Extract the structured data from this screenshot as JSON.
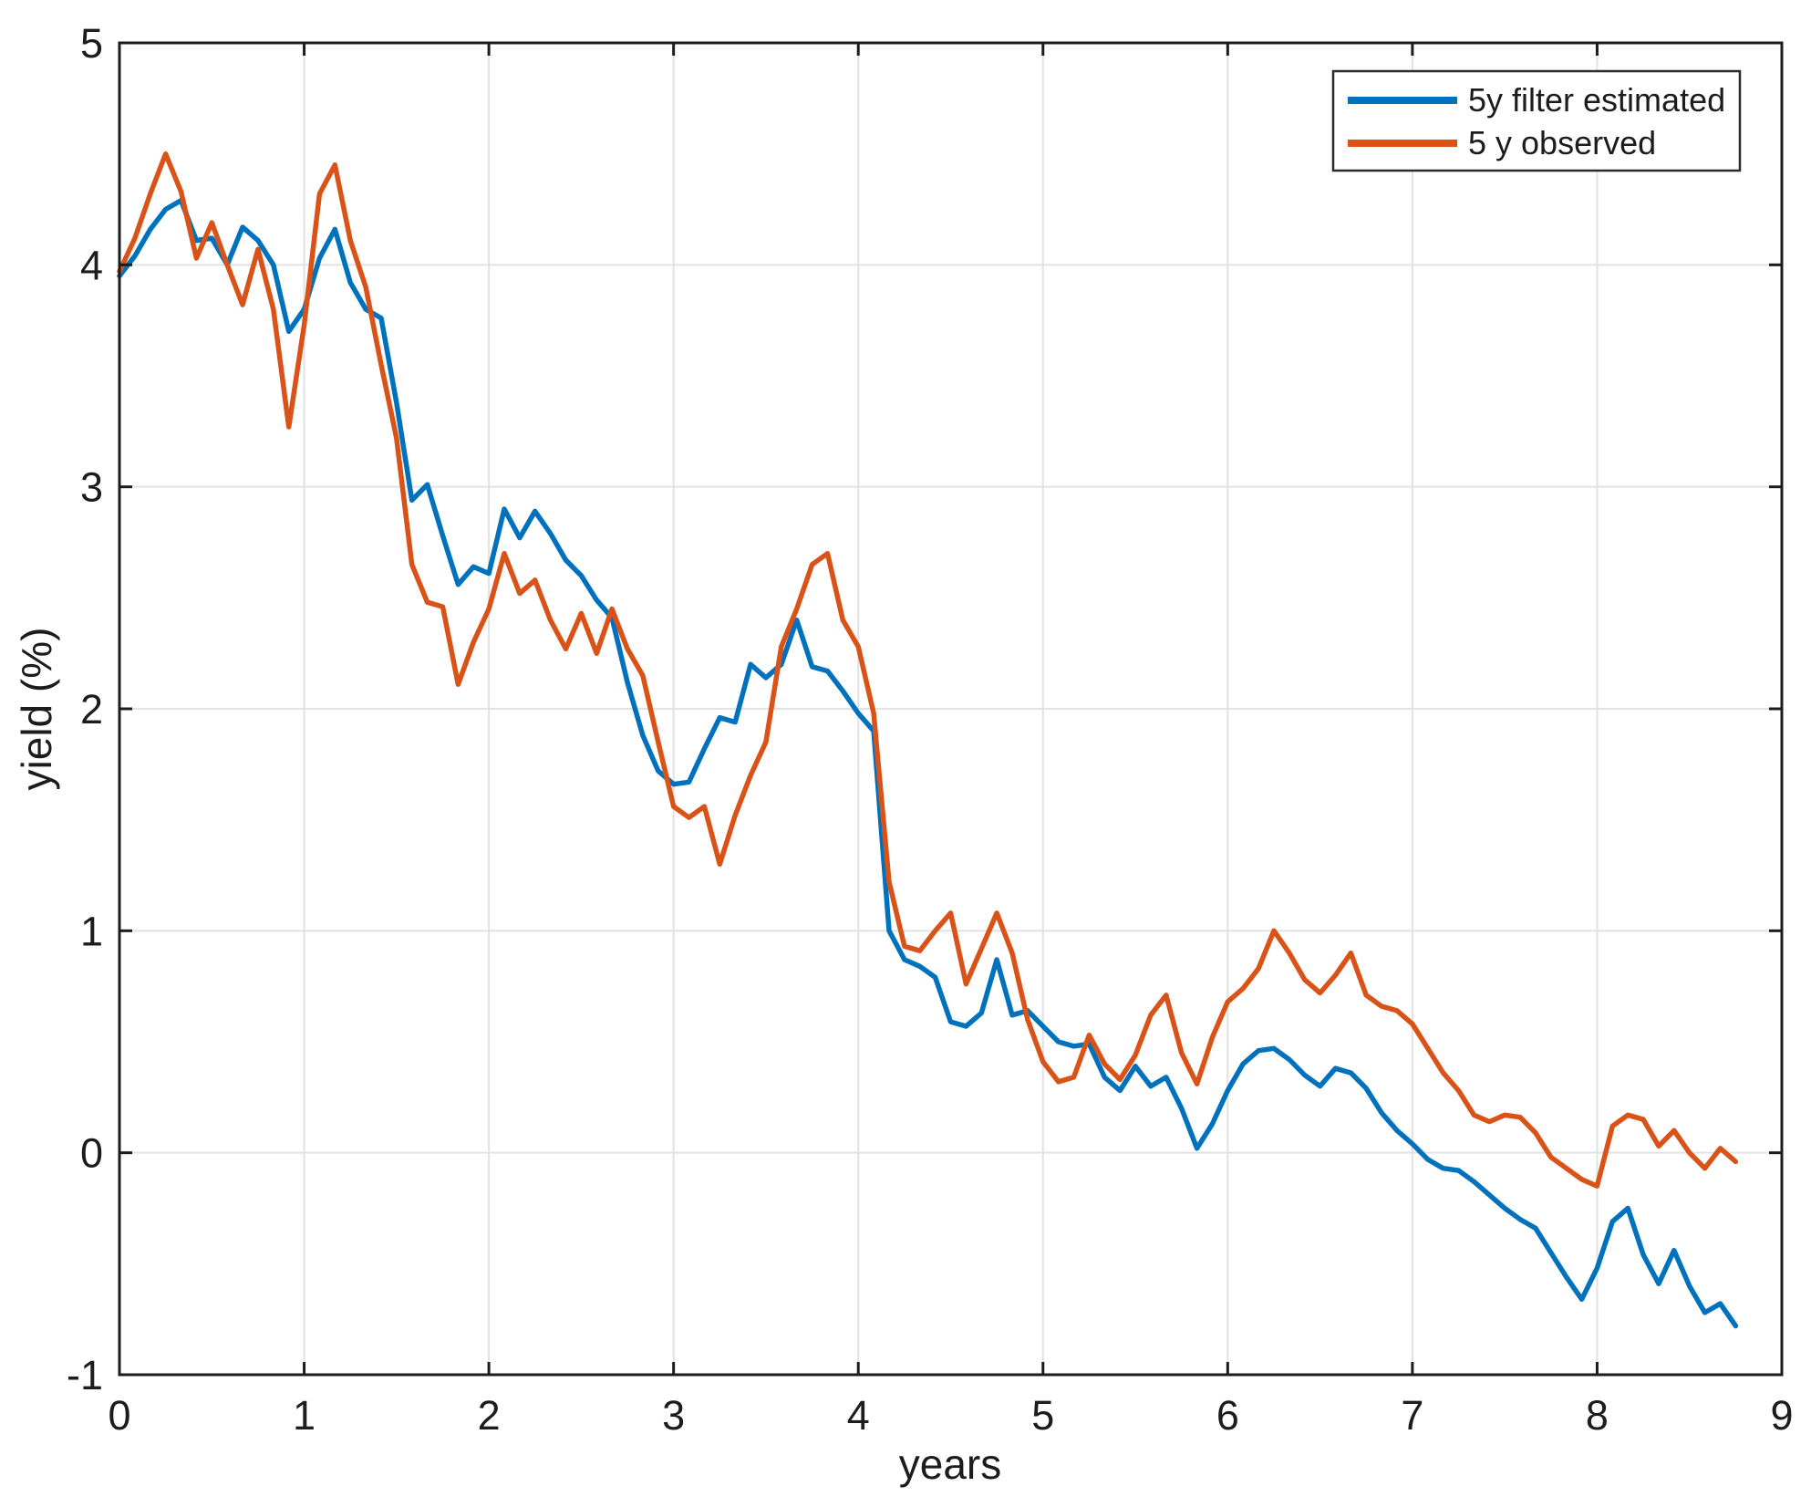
{
  "figure": {
    "background": "#ffffff",
    "axis_color": "#1c1c1c",
    "grid_color": "#e2e2e2",
    "tick_label_color": "#1c1c1c"
  },
  "chart_data": {
    "type": "line",
    "title": "",
    "xlabel": "years",
    "ylabel": "yield (%)",
    "xlim": [
      0,
      9
    ],
    "ylim": [
      -1,
      5
    ],
    "x_ticks": [
      0,
      1,
      2,
      3,
      4,
      5,
      6,
      7,
      8,
      9
    ],
    "y_ticks": [
      -1,
      0,
      1,
      2,
      3,
      4,
      5
    ],
    "grid": true,
    "legend_position": "top-right",
    "x_start": 0,
    "x_step": 0.0833333,
    "series": [
      {
        "name": "5y filter estimated",
        "color": "#0072BD",
        "values": [
          3.95,
          4.04,
          4.16,
          4.25,
          4.29,
          4.11,
          4.12,
          4.0,
          4.17,
          4.11,
          4.0,
          3.7,
          3.8,
          4.03,
          4.16,
          3.92,
          3.8,
          3.76,
          3.38,
          2.94,
          3.01,
          2.78,
          2.56,
          2.64,
          2.61,
          2.9,
          2.77,
          2.89,
          2.79,
          2.67,
          2.6,
          2.49,
          2.41,
          2.12,
          1.88,
          1.72,
          1.66,
          1.67,
          1.82,
          1.96,
          1.94,
          2.2,
          2.14,
          2.2,
          2.4,
          2.19,
          2.17,
          2.08,
          1.98,
          1.9,
          1.0,
          0.87,
          0.84,
          0.79,
          0.59,
          0.57,
          0.63,
          0.87,
          0.62,
          0.64,
          0.57,
          0.5,
          0.48,
          0.49,
          0.34,
          0.28,
          0.39,
          0.3,
          0.34,
          0.2,
          0.02,
          0.13,
          0.28,
          0.4,
          0.46,
          0.47,
          0.42,
          0.35,
          0.3,
          0.38,
          0.36,
          0.29,
          0.18,
          0.1,
          0.04,
          -0.03,
          -0.07,
          -0.08,
          -0.13,
          -0.19,
          -0.25,
          -0.3,
          -0.34,
          -0.45,
          -0.56,
          -0.66,
          -0.52,
          -0.31,
          -0.25,
          -0.46,
          -0.59,
          -0.44,
          -0.6,
          -0.72,
          -0.68,
          -0.78
        ]
      },
      {
        "name": "5 y observed",
        "color": "#D95319",
        "values": [
          3.97,
          4.12,
          4.32,
          4.5,
          4.33,
          4.03,
          4.19,
          4.0,
          3.82,
          4.07,
          3.8,
          3.27,
          3.73,
          4.32,
          4.45,
          4.11,
          3.9,
          3.55,
          3.22,
          2.65,
          2.48,
          2.46,
          2.11,
          2.3,
          2.45,
          2.7,
          2.52,
          2.58,
          2.4,
          2.27,
          2.43,
          2.25,
          2.45,
          2.27,
          2.15,
          1.85,
          1.56,
          1.51,
          1.56,
          1.3,
          1.52,
          1.7,
          1.85,
          2.28,
          2.45,
          2.65,
          2.7,
          2.4,
          2.28,
          1.98,
          1.22,
          0.93,
          0.91,
          1.0,
          1.08,
          0.76,
          0.92,
          1.08,
          0.9,
          0.6,
          0.41,
          0.32,
          0.34,
          0.53,
          0.4,
          0.33,
          0.44,
          0.62,
          0.71,
          0.45,
          0.31,
          0.52,
          0.68,
          0.74,
          0.83,
          1.0,
          0.9,
          0.78,
          0.72,
          0.8,
          0.9,
          0.71,
          0.66,
          0.64,
          0.58,
          0.47,
          0.36,
          0.28,
          0.17,
          0.14,
          0.17,
          0.16,
          0.09,
          -0.02,
          -0.07,
          -0.12,
          -0.15,
          0.12,
          0.17,
          0.15,
          0.03,
          0.1,
          0.0,
          -0.07,
          0.02,
          -0.04
        ]
      }
    ]
  }
}
